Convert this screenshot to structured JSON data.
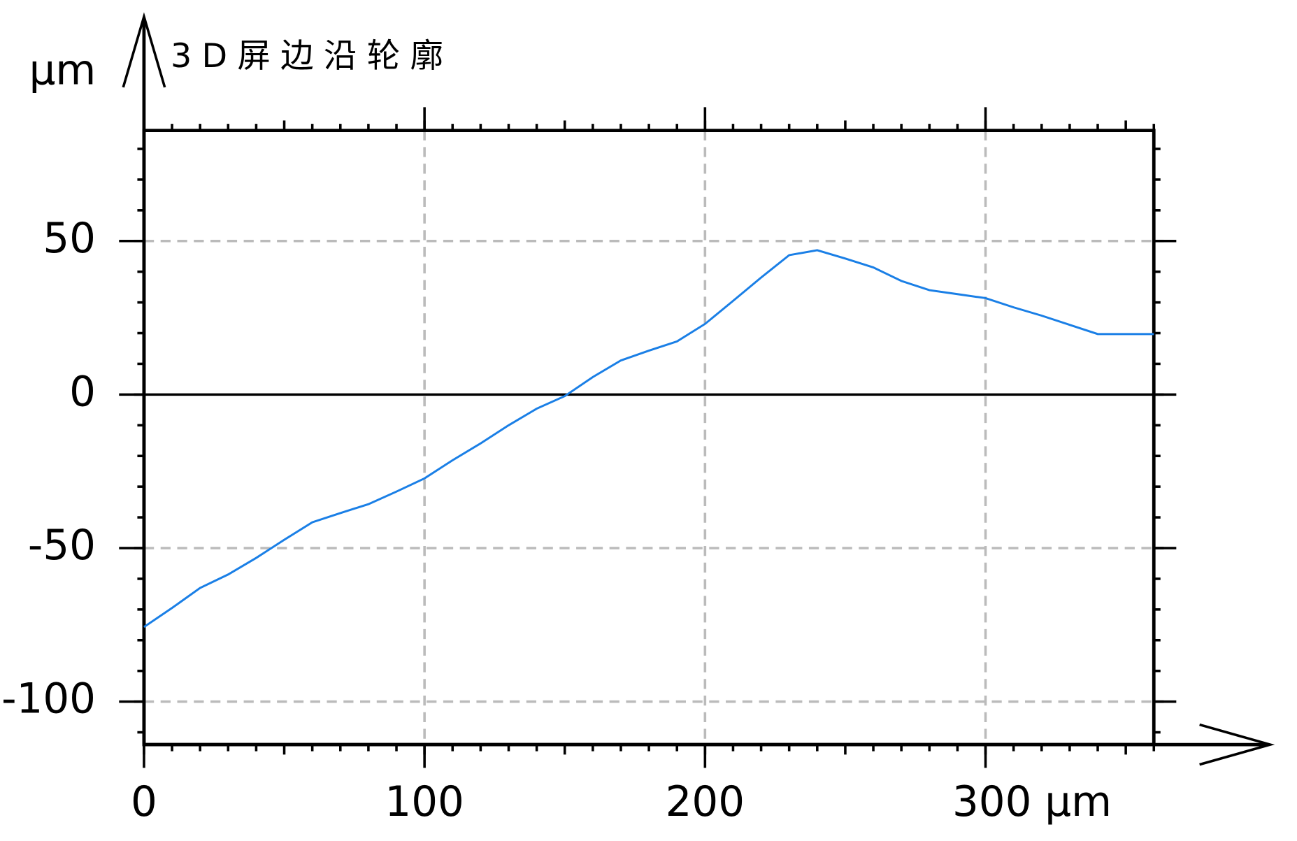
{
  "chart_data": {
    "type": "line",
    "title": "3D屏边沿轮廓",
    "y_label": "μm",
    "x": [
      0,
      10,
      20,
      30,
      40,
      50,
      60,
      70,
      80,
      90,
      100,
      110,
      120,
      130,
      140,
      150,
      160,
      170,
      180,
      190,
      200,
      210,
      220,
      230,
      240,
      250,
      260,
      270,
      280,
      290,
      300,
      310,
      320,
      330,
      340,
      350,
      360
    ],
    "series": [
      {
        "color": "#1a7fe6",
        "values": [
          -75.7,
          -69.5,
          -63,
          -58.6,
          -53.2,
          -47.3,
          -41.6,
          -38.6,
          -35.7,
          -31.6,
          -27.3,
          -21.4,
          -15.9,
          -10,
          -4.6,
          -0.5,
          5.7,
          11.1,
          14.3,
          17.3,
          23,
          30.5,
          38.1,
          45.4,
          47,
          44.3,
          41.4,
          37,
          34,
          32.7,
          31.4,
          28.4,
          25.7,
          22.7,
          19.7,
          19.7,
          19.7
        ]
      }
    ],
    "xlim": [
      0,
      360
    ],
    "ylim": [
      -114,
      86
    ],
    "xticks": [
      0,
      100,
      200,
      {
        "value": 300,
        "label": "300 μm"
      }
    ],
    "yticks": [
      -100,
      -50,
      0,
      50
    ],
    "x_minor_step": 10,
    "y_minor_step": 10,
    "grid": true
  }
}
